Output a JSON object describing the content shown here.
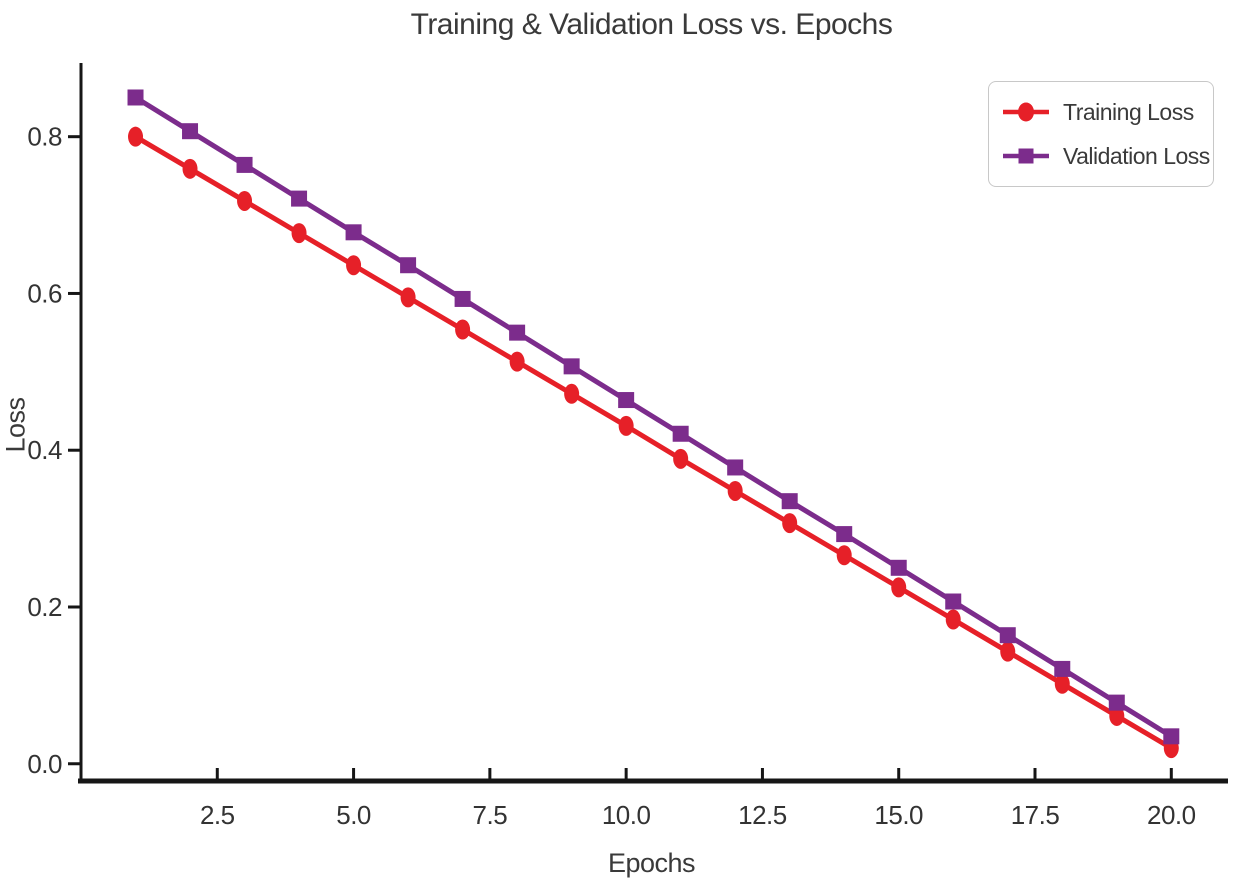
{
  "page": {
    "background_color": "#ffffff",
    "axis_color": "#161616",
    "text_color": "#3a3a3a",
    "legend_border_color": "#c8c8c8"
  },
  "chart_data": {
    "type": "line",
    "title": "Training & Validation Loss vs. Epochs",
    "xlabel": "Epochs",
    "ylabel": "Loss",
    "x": [
      1,
      2,
      3,
      4,
      5,
      6,
      7,
      8,
      9,
      10,
      11,
      12,
      13,
      14,
      15,
      16,
      17,
      18,
      19,
      20
    ],
    "series": [
      {
        "name": "Training Loss",
        "color": "#e62028",
        "marker": "circle",
        "values": [
          0.8,
          0.759,
          0.718,
          0.677,
          0.636,
          0.595,
          0.554,
          0.513,
          0.472,
          0.431,
          0.389,
          0.348,
          0.307,
          0.266,
          0.225,
          0.184,
          0.143,
          0.102,
          0.061,
          0.02
        ]
      },
      {
        "name": "Validation Loss",
        "color": "#7c2c8c",
        "marker": "square",
        "values": [
          0.85,
          0.807,
          0.764,
          0.721,
          0.678,
          0.636,
          0.593,
          0.55,
          0.507,
          0.464,
          0.421,
          0.378,
          0.335,
          0.293,
          0.25,
          0.207,
          0.164,
          0.121,
          0.078,
          0.035
        ]
      }
    ],
    "xticks": {
      "values": [
        2.5,
        5.0,
        7.5,
        10.0,
        12.5,
        15.0,
        17.5,
        20.0
      ],
      "labels": [
        "2.5",
        "5.0",
        "7.5",
        "10.0",
        "12.5",
        "15.0",
        "17.5",
        "20.0"
      ]
    },
    "yticks": {
      "values": [
        0.0,
        0.2,
        0.4,
        0.6,
        0.8
      ],
      "labels": [
        "0.0",
        "0.2",
        "0.4",
        "0.6",
        "0.8"
      ]
    },
    "xlim": [
      0,
      20.93
    ],
    "ylim": [
      -0.022,
      0.894
    ],
    "grid": false,
    "legend_position": "upper right"
  }
}
